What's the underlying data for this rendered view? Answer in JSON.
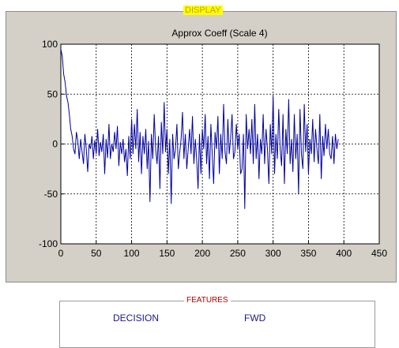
{
  "display_panel": {
    "title": "DISPLAY"
  },
  "features_panel": {
    "title": "FEATURES",
    "buttons": {
      "decision": "DECISION",
      "fwd": "FWD"
    }
  },
  "colors": {
    "line": "#0000a0",
    "panel_bg": "#d4d0c8",
    "display_title_bg": "#ffff00",
    "features_title": "#b00000",
    "button_text": "#1a1a8c"
  },
  "chart_data": {
    "type": "line",
    "title": "Approx Coeff (Scale 4)",
    "xlabel": "",
    "ylabel": "",
    "xlim": [
      0,
      450
    ],
    "ylim": [
      -100,
      100
    ],
    "xticks": [
      0,
      50,
      100,
      150,
      200,
      250,
      300,
      350,
      400,
      450
    ],
    "yticks": [
      -100,
      -50,
      0,
      50,
      100
    ],
    "grid": true,
    "series": [
      {
        "name": "",
        "x_start": 0,
        "x_step": 2,
        "values": [
          95,
          88,
          70,
          62,
          48,
          42,
          30,
          15,
          8,
          -5,
          -10,
          12,
          3,
          -15,
          5,
          -8,
          -20,
          10,
          -5,
          -28,
          0,
          -5,
          8,
          -15,
          4,
          -10,
          15,
          -12,
          2,
          -8,
          10,
          -30,
          5,
          -14,
          20,
          -15,
          0,
          -8,
          12,
          -5,
          18,
          -22,
          2,
          -10,
          5,
          -18,
          -5,
          -32,
          8,
          -15,
          25,
          -10,
          20,
          -5,
          35,
          -18,
          12,
          -30,
          8,
          -10,
          15,
          -25,
          3,
          -58,
          10,
          -15,
          30,
          -5,
          -20,
          8,
          -45,
          22,
          -10,
          42,
          -8,
          15,
          -30,
          5,
          -60,
          10,
          -15,
          -5,
          20,
          -25,
          -8,
          5,
          32,
          -15,
          10,
          -25,
          -5,
          15,
          -10,
          28,
          -20,
          5,
          -15,
          -45,
          10,
          -30,
          15,
          -5,
          30,
          -20,
          8,
          -35,
          20,
          -10,
          -40,
          12,
          -5,
          28,
          -30,
          10,
          -15,
          40,
          -8,
          -20,
          25,
          -10,
          5,
          30,
          -15,
          -8,
          20,
          -5,
          10,
          -30,
          -25,
          10,
          -65,
          30,
          -5,
          15,
          -10,
          25,
          -20,
          40,
          -15,
          10,
          -35,
          5,
          -10,
          30,
          -20,
          15,
          -5,
          -40,
          20,
          -10,
          48,
          -30,
          10,
          -15,
          35,
          -5,
          -22,
          30,
          -40,
          15,
          -10,
          45,
          -20,
          5,
          -28,
          30,
          -15,
          10,
          -50,
          35,
          -10,
          -25,
          40,
          -8,
          20,
          -30,
          5,
          -10,
          25,
          -18,
          15,
          -5,
          -20,
          30,
          -35,
          8,
          -12,
          20,
          -5,
          15,
          -10,
          -15,
          8,
          -20,
          10,
          -5,
          5
        ]
      }
    ]
  }
}
